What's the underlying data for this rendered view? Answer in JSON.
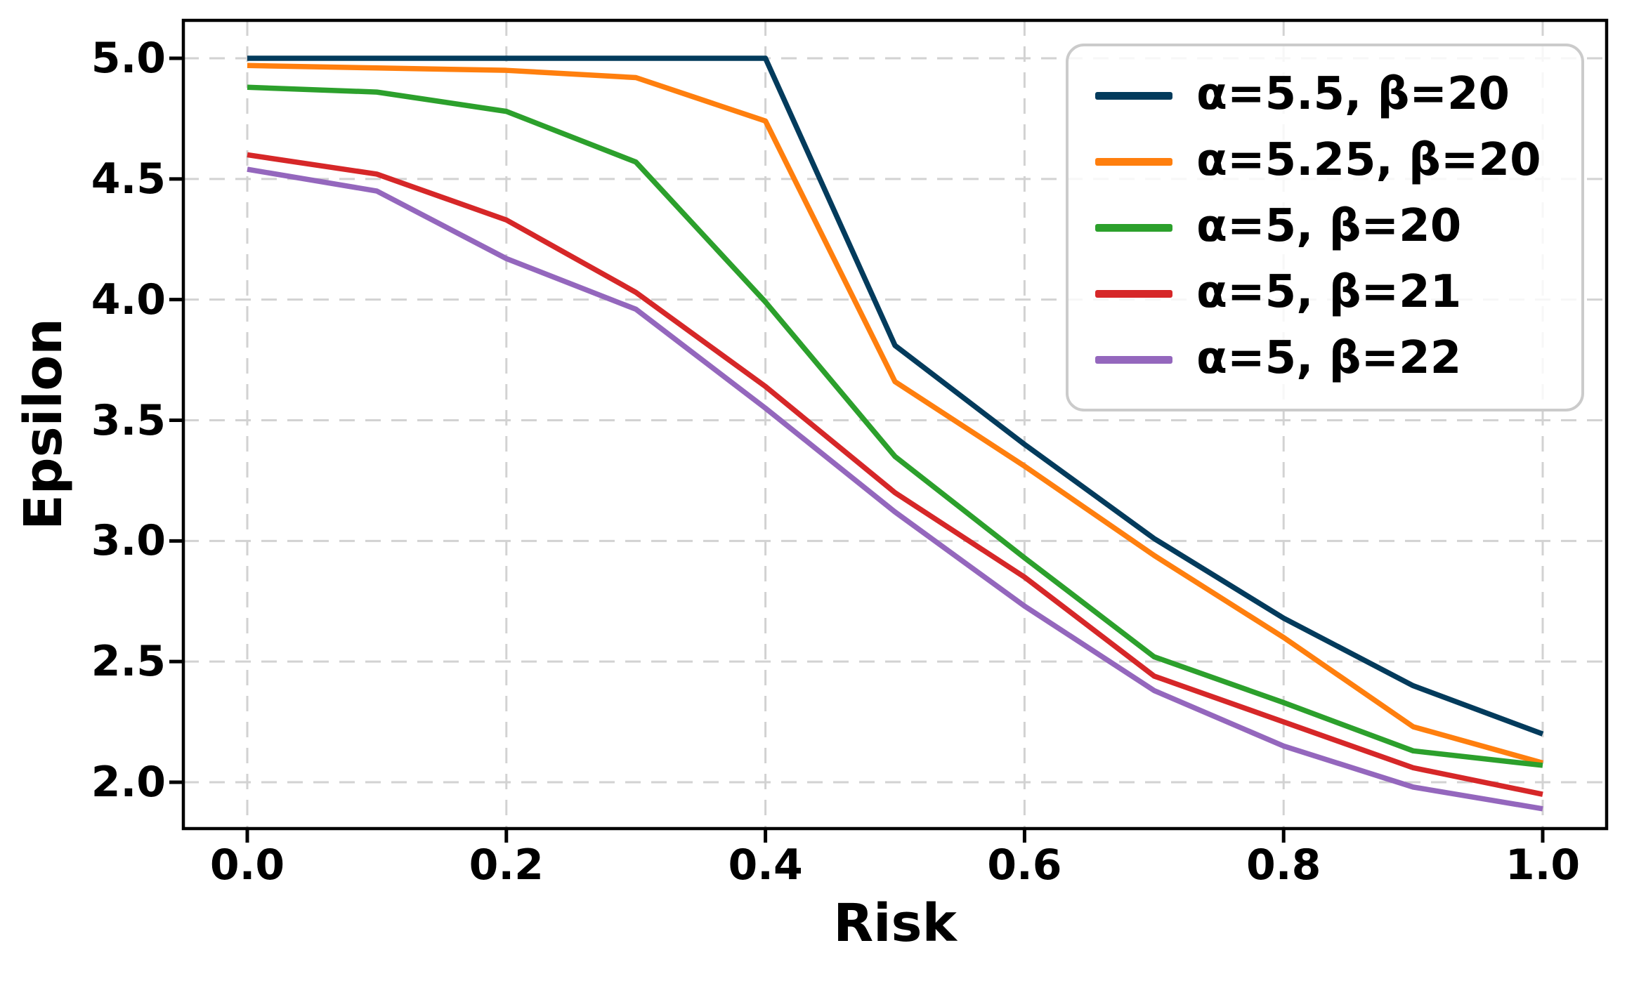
{
  "figure": {
    "background": "#ffffff",
    "grid_color": "#d2d2d2",
    "spine_color": "#000000",
    "text_color": "#000000",
    "legend_border_color": "#cbcbcb"
  },
  "chart_data": {
    "type": "line",
    "title": "",
    "xlabel": "Risk",
    "ylabel": "Epsilon",
    "grid": true,
    "grid_style": "dashed",
    "legend_position": "upper right",
    "xlim": [
      -0.05,
      1.05
    ],
    "ylim": [
      1.81,
      5.16
    ],
    "xticks": [
      "0.0",
      "0.2",
      "0.4",
      "0.6",
      "0.8",
      "1.0"
    ],
    "xtick_values": [
      0.0,
      0.2,
      0.4,
      0.6,
      0.8,
      1.0
    ],
    "yticks": [
      "5.0",
      "4.5",
      "4.0",
      "3.5",
      "3.0",
      "2.5",
      "2.0"
    ],
    "ytick_values": [
      5.0,
      4.5,
      4.0,
      3.5,
      3.0,
      2.5,
      2.0
    ],
    "x": [
      0.0,
      0.1,
      0.2,
      0.3,
      0.4,
      0.5,
      0.6,
      0.7,
      0.8,
      0.9,
      1.0
    ],
    "series": [
      {
        "name": "α=5.5, β=20",
        "color": "#033b5c",
        "values": [
          5.0,
          5.0,
          5.0,
          5.0,
          5.0,
          3.81,
          3.4,
          3.01,
          2.68,
          2.4,
          2.2
        ]
      },
      {
        "name": "α=5.25, β=20",
        "color": "#ff7f0e",
        "values": [
          4.97,
          4.96,
          4.95,
          4.92,
          4.74,
          3.66,
          3.31,
          2.94,
          2.6,
          2.23,
          2.08
        ]
      },
      {
        "name": "α=5, β=20",
        "color": "#2ca02c",
        "values": [
          4.88,
          4.86,
          4.78,
          4.57,
          3.99,
          3.35,
          2.93,
          2.52,
          2.33,
          2.13,
          2.07
        ]
      },
      {
        "name": "α=5, β=21",
        "color": "#d62728",
        "values": [
          4.6,
          4.52,
          4.33,
          4.03,
          3.64,
          3.2,
          2.85,
          2.44,
          2.25,
          2.06,
          1.95
        ]
      },
      {
        "name": "α=5, β=22",
        "color": "#9467bd",
        "values": [
          4.54,
          4.45,
          4.17,
          3.96,
          3.55,
          3.12,
          2.73,
          2.38,
          2.15,
          1.98,
          1.89
        ]
      }
    ]
  }
}
